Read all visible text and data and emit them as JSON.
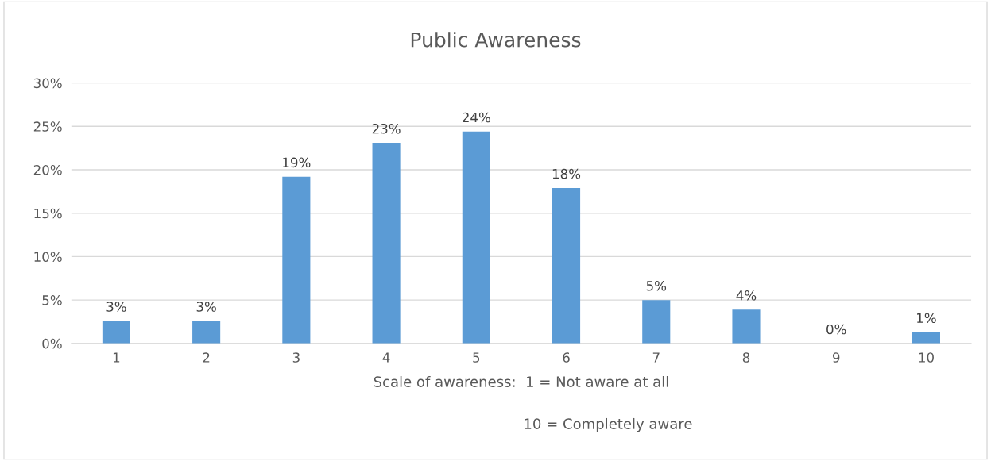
{
  "chart_data": {
    "type": "bar",
    "title": "Public Awareness",
    "xlabel": "Scale of awareness:  1 = Not aware at all",
    "annotations": [
      "10 = Completely aware"
    ],
    "categories": [
      "1",
      "2",
      "3",
      "4",
      "5",
      "6",
      "7",
      "8",
      "9",
      "10"
    ],
    "values": [
      2.6,
      2.6,
      19.2,
      23.1,
      24.4,
      17.9,
      5.0,
      3.9,
      0,
      1.3
    ],
    "value_labels": [
      "3%",
      "3%",
      "19%",
      "23%",
      "24%",
      "18%",
      "5%",
      "4%",
      "0%",
      "1%"
    ],
    "color": "#5b9bd5",
    "ylim": [
      0,
      30
    ],
    "yticks": [
      {
        "value": 0,
        "label": "0%"
      },
      {
        "value": 5,
        "label": "5%"
      },
      {
        "value": 10,
        "label": "10%"
      },
      {
        "value": 15,
        "label": "15%"
      },
      {
        "value": 20,
        "label": "20%"
      },
      {
        "value": 25,
        "label": "25%"
      },
      {
        "value": 30,
        "label": "30%"
      }
    ],
    "grid": "y",
    "legend": false
  }
}
